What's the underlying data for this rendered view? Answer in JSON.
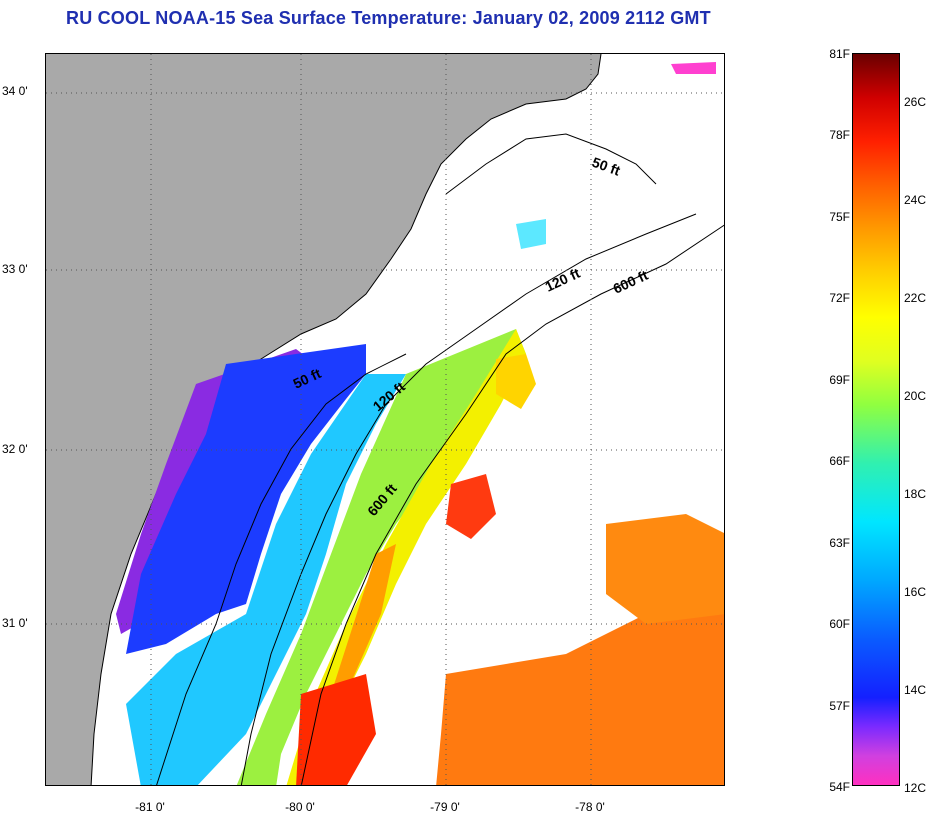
{
  "title": "RU COOL  NOAA-15  Sea Surface Temperature:  January 02, 2009 2112 GMT",
  "map": {
    "y_ticks": [
      "34 0'",
      "33 0'",
      "32 0'",
      "31 0'"
    ],
    "x_ticks": [
      "-81 0'",
      "-80 0'",
      "-79 0'",
      "-78 0'"
    ],
    "contour_labels": [
      "50 ft",
      "120 ft",
      "600 ft",
      "50 ft",
      "120 ft",
      "600 ft"
    ],
    "colors": {
      "land": "#a9a9a9",
      "no_data": "#ffffff",
      "contour": "#000000"
    }
  },
  "colorbar": {
    "fahrenheit": [
      "81F",
      "78F",
      "75F",
      "72F",
      "69F",
      "66F",
      "63F",
      "60F",
      "57F",
      "54F"
    ],
    "celsius": [
      "26C",
      "24C",
      "22C",
      "20C",
      "18C",
      "16C",
      "14C",
      "12C"
    ]
  }
}
